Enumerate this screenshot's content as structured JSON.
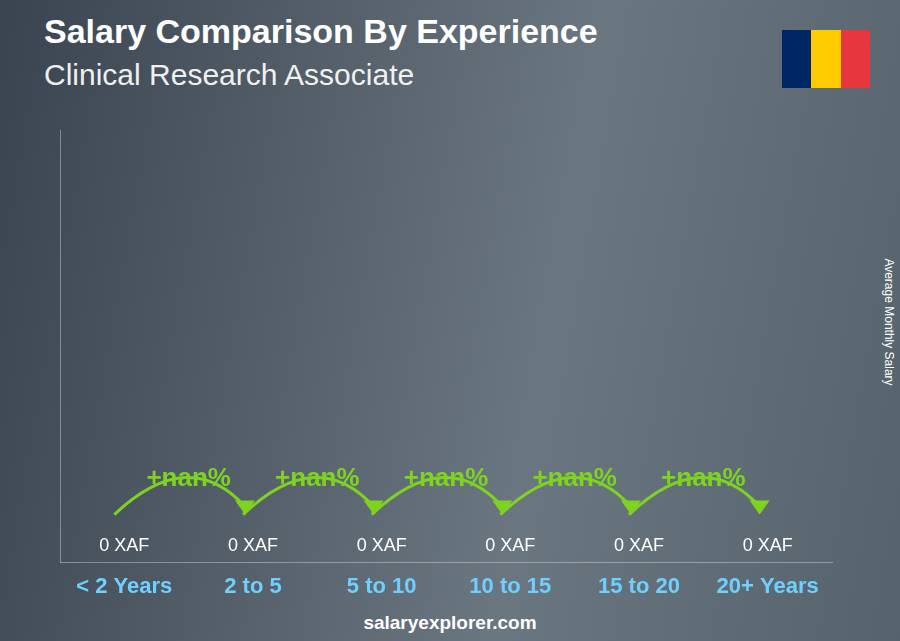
{
  "chart_data": {
    "type": "bar",
    "title": "Salary Comparison By Experience",
    "subtitle": "Clinical Research Associate",
    "y_label": "Average Monthly Salary",
    "source": "salaryexplorer.com",
    "categories": [
      "< 2 Years",
      "2 to 5",
      "5 to 10",
      "10 to 15",
      "15 to 20",
      "20+ Years"
    ],
    "values": [
      0,
      0,
      0,
      0,
      0,
      0
    ],
    "value_labels": [
      "0 XAF",
      "0 XAF",
      "0 XAF",
      "0 XAF",
      "0 XAF",
      "0 XAF"
    ],
    "annotations": [
      "+nan%",
      "+nan%",
      "+nan%",
      "+nan%",
      "+nan%"
    ],
    "color": "#1ab0ef",
    "ylim": [
      0,
      1
    ],
    "data_labels": true,
    "tick_labels": "x",
    "grid": false
  }
}
